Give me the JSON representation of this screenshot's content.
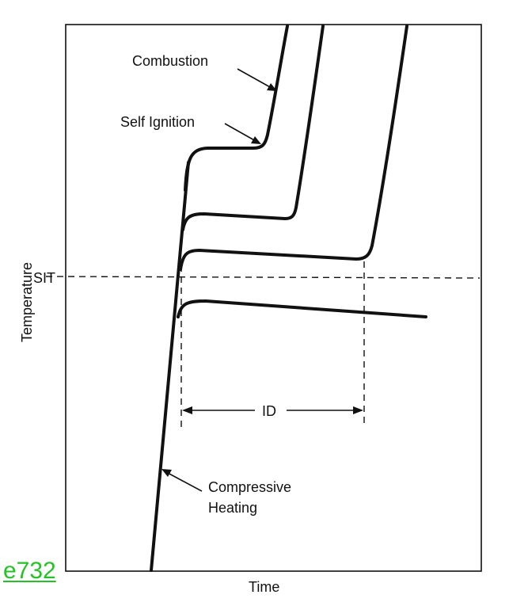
{
  "page_id": "e732",
  "axes": {
    "x_label": "Time",
    "y_label": "Temperature"
  },
  "threshold": {
    "label": "SIT"
  },
  "curves": [
    {
      "name": "Combustion"
    },
    {
      "name": "Self Ignition"
    }
  ],
  "annotations": {
    "delay_label": "ID",
    "compressive_label_line1": "Compressive",
    "compressive_label_line2": "Heating"
  },
  "colors": {
    "ink": "#111111",
    "page_id": "#22c322",
    "background": "#ffffff"
  }
}
